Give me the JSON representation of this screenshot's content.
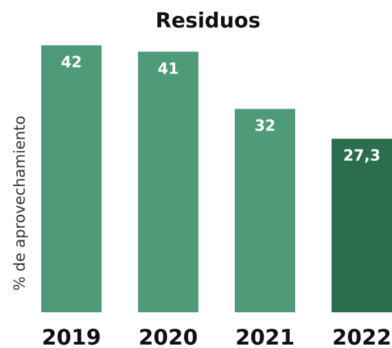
{
  "chart_data": {
    "type": "bar",
    "title": "Residuos",
    "xlabel": "",
    "ylabel": "% de aprovechamiento",
    "categories": [
      "2019",
      "2020",
      "2021",
      "2022"
    ],
    "values": [
      42,
      41,
      32,
      27.3
    ],
    "data_labels": [
      "42",
      "41",
      "32",
      "27,3"
    ],
    "ylim": [
      0,
      42
    ],
    "grid": false,
    "legend": "none",
    "colors": {
      "bar": "#4f9a79",
      "highlight": "#2a6e4e",
      "highlight_category": "2022"
    }
  }
}
